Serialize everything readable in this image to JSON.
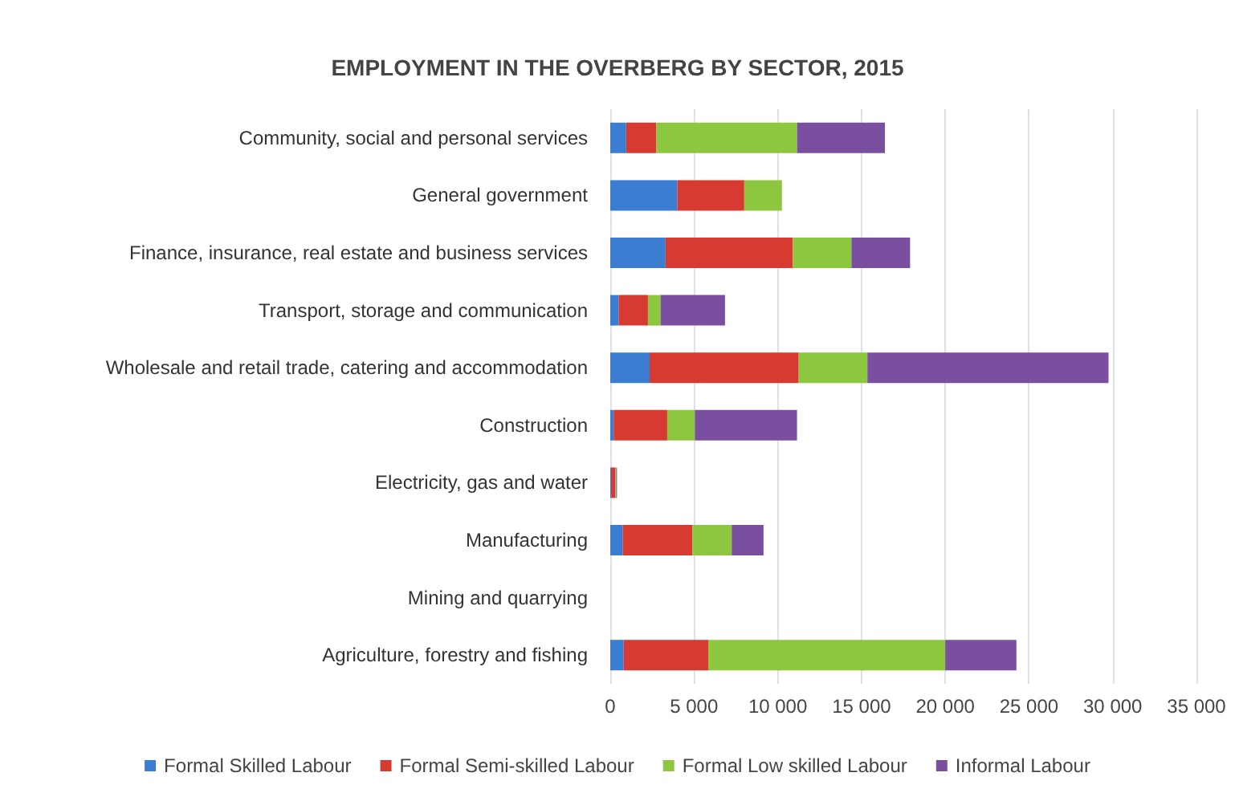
{
  "chart_data": {
    "type": "bar",
    "orientation": "horizontal",
    "stacked": true,
    "title": "EMPLOYMENT IN THE OVERBERG BY SECTOR, 2015",
    "categories": [
      "Community, social and personal services",
      "General government",
      "Finance, insurance, real estate and business services",
      "Transport, storage and communication",
      "Wholesale and retail trade, catering and accommodation",
      "Construction",
      "Electricity, gas and water",
      "Manufacturing",
      "Mining and quarrying",
      "Agriculture, forestry and fishing"
    ],
    "series": [
      {
        "name": "Formal Skilled Labour",
        "color": "#3b7dd0",
        "values": [
          950,
          4000,
          3300,
          500,
          2350,
          200,
          50,
          750,
          null,
          800
        ]
      },
      {
        "name": "Formal Semi-skilled Labour",
        "color": "#d73a31",
        "values": [
          1800,
          4000,
          7600,
          1750,
          8900,
          3200,
          250,
          4150,
          null,
          5050
        ]
      },
      {
        "name": "Formal Low skilled Labour",
        "color": "#8dc63f",
        "values": [
          8400,
          2250,
          3500,
          750,
          4100,
          1650,
          50,
          2350,
          null,
          14150
        ]
      },
      {
        "name": "Informal Labour",
        "color": "#7b4fa0",
        "values": [
          5250,
          0,
          3500,
          3850,
          14400,
          6100,
          50,
          1900,
          null,
          4250
        ]
      }
    ],
    "xlim": [
      0,
      35000
    ],
    "xticks": [
      {
        "value": 0,
        "label": "0"
      },
      {
        "value": 5000,
        "label": "5 000"
      },
      {
        "value": 10000,
        "label": "10 000"
      },
      {
        "value": 15000,
        "label": "15 000"
      },
      {
        "value": 20000,
        "label": "20 000"
      },
      {
        "value": 25000,
        "label": "25 000"
      },
      {
        "value": 30000,
        "label": "30 000"
      },
      {
        "value": 35000,
        "label": "35 000"
      }
    ],
    "grid": "x",
    "legend": "bottom"
  }
}
